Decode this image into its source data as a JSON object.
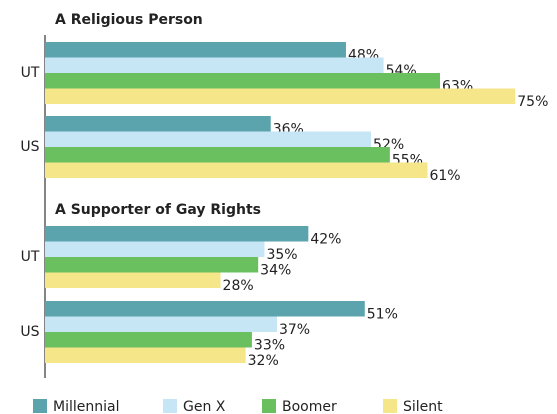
{
  "chart_data": [
    {
      "type": "bar",
      "orientation": "horizontal",
      "title": "A Religious Person",
      "categories": [
        "UT",
        "US"
      ],
      "series": [
        {
          "name": "Millennial",
          "color": "#5ba3ad",
          "values": [
            48,
            36
          ],
          "value_labels": [
            "48%",
            "36%"
          ]
        },
        {
          "name": "Gen X",
          "color": "#c6e6f5",
          "values": [
            54,
            52
          ],
          "value_labels": [
            "54%",
            "52%"
          ]
        },
        {
          "name": "Boomer",
          "color": "#6abf5e",
          "values": [
            63,
            55
          ],
          "value_labels": [
            "63%",
            "55%"
          ]
        },
        {
          "name": "Silent",
          "color": "#f5e68a",
          "values": [
            75,
            61
          ],
          "value_labels": [
            "75%",
            "61%"
          ]
        }
      ]
    },
    {
      "type": "bar",
      "orientation": "horizontal",
      "title": "A Supporter of Gay Rights",
      "categories": [
        "UT",
        "US"
      ],
      "series": [
        {
          "color": "#5ba3ad",
          "values": [
            42,
            51
          ],
          "value_labels": [
            "42%",
            "51%"
          ]
        },
        {
          "color": "#c6e6f5",
          "values": [
            35,
            37
          ],
          "value_labels": [
            "35%",
            "37%"
          ]
        },
        {
          "color": "#6abf5e",
          "values": [
            34,
            33
          ],
          "value_labels": [
            "34%",
            "33%"
          ]
        },
        {
          "color": "#f5e68a",
          "values": [
            28,
            32
          ],
          "value_labels": [
            "28%",
            "32%"
          ]
        }
      ]
    }
  ]
}
